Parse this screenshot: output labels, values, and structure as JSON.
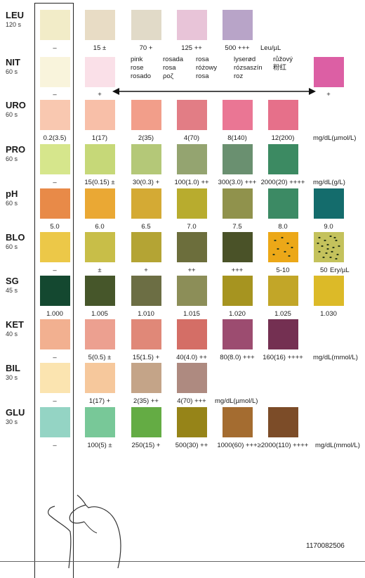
{
  "strip_label": "test strip",
  "code": "1170082506",
  "rows": [
    {
      "name": "LEU",
      "time": "120 s",
      "pads": [
        {
          "color": "#f2ecc8",
          "label": "–"
        },
        {
          "color": "#e8dcc5",
          "label": "15 ±"
        },
        {
          "color": "#e1dac8",
          "label": "70 +"
        },
        {
          "color": "#e8c4d8",
          "label": "125 ++"
        },
        {
          "color": "#b8a4c8",
          "label": "500 +++"
        }
      ],
      "unit": "Leu/µL"
    },
    {
      "name": "NIT",
      "time": "60 s",
      "pads": [
        {
          "color": "#f9f4dc",
          "label": "–"
        },
        {
          "color": "#fae0e8",
          "label": "+"
        },
        {
          "color": "#dc5fa4",
          "label": "+"
        }
      ],
      "langs": [
        [
          "pink",
          "rose",
          "rosado"
        ],
        [
          "rosada",
          "rosa",
          "ροζ"
        ],
        [
          "rosa",
          "różowy",
          "rosa"
        ],
        [
          "lyserød",
          "rózsaszín",
          "roz"
        ],
        [
          "růžový",
          "粉红"
        ]
      ]
    },
    {
      "name": "URO",
      "time": "60 s",
      "pads": [
        {
          "color": "#f9c8b0",
          "label": "0.2(3.5)"
        },
        {
          "color": "#f8bfa8",
          "label": "1(17)"
        },
        {
          "color": "#f29e8a",
          "label": "2(35)"
        },
        {
          "color": "#e27d85",
          "label": "4(70)"
        },
        {
          "color": "#ea7694",
          "label": "8(140)"
        },
        {
          "color": "#e6708a",
          "label": "12(200)"
        }
      ],
      "unit": "mg/dL(µmol/L)"
    },
    {
      "name": "PRO",
      "time": "60 s",
      "pads": [
        {
          "color": "#d6e68c",
          "label": "–"
        },
        {
          "color": "#c6d878",
          "label": "15(0.15) ±"
        },
        {
          "color": "#b4c878",
          "label": "30(0.3) +"
        },
        {
          "color": "#94a470",
          "label": "100(1.0) ++"
        },
        {
          "color": "#6a9070",
          "label": "300(3.0) +++"
        },
        {
          "color": "#3c8a62",
          "label": "2000(20) ++++"
        }
      ],
      "unit": "mg/dL(g/L)"
    },
    {
      "name": "pH",
      "time": "60 s",
      "pads": [
        {
          "color": "#e88a48",
          "label": "5.0"
        },
        {
          "color": "#eaa834",
          "label": "6.0"
        },
        {
          "color": "#d4aa34",
          "label": "6.5"
        },
        {
          "color": "#b8ac2e",
          "label": "7.0"
        },
        {
          "color": "#90924c",
          "label": "7.5"
        },
        {
          "color": "#3c8a64",
          "label": "8.0"
        },
        {
          "color": "#146c6c",
          "label": "9.0"
        }
      ]
    },
    {
      "name": "BLO",
      "time": "60 s",
      "pads": [
        {
          "color": "#ecc848",
          "label": "–"
        },
        {
          "color": "#c8be48",
          "label": "±"
        },
        {
          "color": "#b4a434",
          "label": "+"
        },
        {
          "color": "#6c6e3c",
          "label": "++"
        },
        {
          "color": "#4a5228",
          "label": "+++"
        },
        {
          "color": "#eca818",
          "label": "5-10",
          "dots": true
        },
        {
          "color": "#c4c25c",
          "label": "50",
          "dots": true
        }
      ],
      "unit": "Ery/µL"
    },
    {
      "name": "SG",
      "time": "45 s",
      "pads": [
        {
          "color": "#144830",
          "label": "1.000"
        },
        {
          "color": "#46562a",
          "label": "1.005"
        },
        {
          "color": "#6c6e44",
          "label": "1.010"
        },
        {
          "color": "#8c8e58",
          "label": "1.015"
        },
        {
          "color": "#a69420",
          "label": "1.020"
        },
        {
          "color": "#c2a628",
          "label": "1.025"
        },
        {
          "color": "#dcba28",
          "label": "1.030"
        }
      ]
    },
    {
      "name": "KET",
      "time": "40 s",
      "pads": [
        {
          "color": "#f2b090",
          "label": "–"
        },
        {
          "color": "#eca090",
          "label": "5(0.5) ±"
        },
        {
          "color": "#e08878",
          "label": "15(1.5) +"
        },
        {
          "color": "#d46e66",
          "label": "40(4.0) ++"
        },
        {
          "color": "#9c4c70",
          "label": "80(8.0) +++"
        },
        {
          "color": "#743052",
          "label": "160(16) ++++"
        }
      ],
      "unit": "mg/dL(mmol/L)"
    },
    {
      "name": "BIL",
      "time": "30 s",
      "pads": [
        {
          "color": "#fbe4b0",
          "label": "–"
        },
        {
          "color": "#f6c89c",
          "label": "1(17) +"
        },
        {
          "color": "#c4a488",
          "label": "2(35) ++"
        },
        {
          "color": "#ae8a80",
          "label": "4(70) +++"
        }
      ],
      "unit": "mg/dL(µmol/L)"
    },
    {
      "name": "GLU",
      "time": "30 s",
      "pads": [
        {
          "color": "#94d4c4",
          "label": "–"
        },
        {
          "color": "#78c898",
          "label": "100(5) ±"
        },
        {
          "color": "#64ac44",
          "label": "250(15) +"
        },
        {
          "color": "#968418",
          "label": "500(30) ++"
        },
        {
          "color": "#a46c30",
          "label": "1000(60) +++"
        },
        {
          "color": "#7c4c28",
          "label": "≥2000(110) ++++"
        }
      ],
      "unit": "mg/dL(mmol/L)"
    }
  ]
}
